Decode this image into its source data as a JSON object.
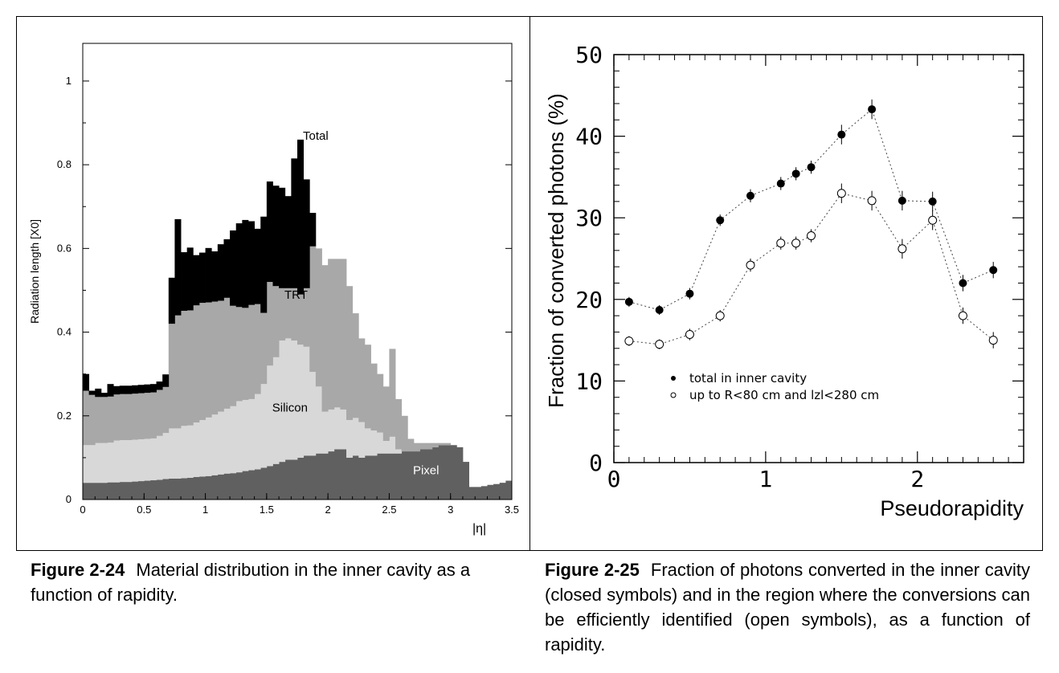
{
  "figures": [
    {
      "caption_label": "Figure 2-24",
      "caption_text": "Material distribution in the inner cavity as a function of rapidity."
    },
    {
      "caption_label": "Figure 2-25",
      "caption_text": "Fraction of photons converted in the inner cavity (closed symbols) and in the region where the conversions can be efficiently identified (open symbols), as a function of rapidity."
    }
  ],
  "chart_data": [
    {
      "type": "area",
      "stacked": true,
      "title": "",
      "xlabel": "|η|",
      "ylabel": "Radiation length [X0]",
      "xlim": [
        0,
        3.5
      ],
      "ylim": [
        0,
        1.09
      ],
      "x_ticks": [
        "0",
        "0.5",
        "1",
        "1.5",
        "2",
        "2.5",
        "3",
        "3.5"
      ],
      "y_ticks": [
        "0",
        "0.2",
        "0.4",
        "0.6",
        "0.8",
        "1"
      ],
      "bin_edges": [
        0,
        0.05,
        0.1,
        0.15,
        0.2,
        0.25,
        0.3,
        0.35,
        0.4,
        0.45,
        0.5,
        0.55,
        0.6,
        0.65,
        0.7,
        0.75,
        0.8,
        0.85,
        0.9,
        0.95,
        1.0,
        1.05,
        1.1,
        1.15,
        1.2,
        1.25,
        1.3,
        1.35,
        1.4,
        1.45,
        1.5,
        1.55,
        1.6,
        1.65,
        1.7,
        1.75,
        1.8,
        1.85,
        1.9,
        1.95,
        2.0,
        2.05,
        2.1,
        2.15,
        2.2,
        2.25,
        2.3,
        2.35,
        2.4,
        2.45,
        2.5,
        2.55,
        2.6,
        2.65,
        2.7,
        2.75,
        2.8,
        2.85,
        2.9,
        2.95,
        3.0,
        3.05,
        3.1,
        3.15,
        3.2,
        3.25,
        3.3,
        3.35,
        3.4,
        3.45,
        3.5
      ],
      "series": [
        {
          "name": "Pixel",
          "color": "#606060",
          "values": [
            0.04,
            0.04,
            0.04,
            0.04,
            0.041,
            0.041,
            0.042,
            0.042,
            0.043,
            0.044,
            0.045,
            0.046,
            0.047,
            0.049,
            0.05,
            0.05,
            0.051,
            0.052,
            0.054,
            0.055,
            0.056,
            0.058,
            0.06,
            0.062,
            0.063,
            0.065,
            0.068,
            0.07,
            0.072,
            0.076,
            0.08,
            0.085,
            0.09,
            0.095,
            0.095,
            0.1,
            0.105,
            0.105,
            0.11,
            0.11,
            0.115,
            0.12,
            0.12,
            0.1,
            0.105,
            0.1,
            0.105,
            0.105,
            0.11,
            0.11,
            0.11,
            0.11,
            0.115,
            0.115,
            0.115,
            0.12,
            0.12,
            0.125,
            0.13,
            0.13,
            0.13,
            0.125,
            0.09,
            0.03,
            0.03,
            0.032,
            0.035,
            0.037,
            0.04,
            0.045
          ]
        },
        {
          "name": "Silicon",
          "color": "#d8d8d8",
          "values": [
            0.09,
            0.09,
            0.095,
            0.095,
            0.095,
            0.1,
            0.1,
            0.1,
            0.1,
            0.1,
            0.1,
            0.1,
            0.105,
            0.11,
            0.12,
            0.12,
            0.125,
            0.125,
            0.13,
            0.135,
            0.14,
            0.145,
            0.15,
            0.155,
            0.16,
            0.17,
            0.17,
            0.17,
            0.18,
            0.2,
            0.24,
            0.255,
            0.29,
            0.29,
            0.285,
            0.27,
            0.26,
            0.2,
            0.16,
            0.1,
            0.1,
            0.1,
            0.095,
            0.09,
            0.09,
            0.085,
            0.065,
            0.06,
            0.05,
            0.03,
            0.04,
            0.01,
            0.0,
            0.0,
            0.0,
            0.0,
            0.0,
            0.0,
            0.0,
            0.0,
            0.0,
            0.0,
            0.0,
            0.0,
            0.0,
            0.0,
            0.0,
            0.0,
            0.0,
            0.0
          ]
        },
        {
          "name": "TRT",
          "color": "#a8a8a8",
          "values": [
            0.13,
            0.12,
            0.11,
            0.11,
            0.11,
            0.11,
            0.11,
            0.11,
            0.11,
            0.11,
            0.11,
            0.11,
            0.11,
            0.11,
            0.25,
            0.27,
            0.275,
            0.275,
            0.28,
            0.28,
            0.275,
            0.27,
            0.265,
            0.265,
            0.24,
            0.225,
            0.22,
            0.225,
            0.215,
            0.17,
            0.2,
            0.17,
            0.125,
            0.12,
            0.125,
            0.12,
            0.14,
            0.3,
            0.33,
            0.35,
            0.36,
            0.355,
            0.36,
            0.32,
            0.25,
            0.2,
            0.2,
            0.16,
            0.14,
            0.13,
            0.21,
            0.12,
            0.085,
            0.03,
            0.02,
            0.015,
            0.015,
            0.01,
            0.005,
            0.005,
            0.0,
            0.0,
            0.0,
            0.0,
            0.0,
            0.0,
            0.0,
            0.0,
            0.0,
            0.0
          ]
        },
        {
          "name": "Total",
          "color": "#000000",
          "values": [
            0.04,
            0.01,
            0.02,
            0.01,
            0.03,
            0.02,
            0.02,
            0.02,
            0.02,
            0.02,
            0.02,
            0.02,
            0.02,
            0.03,
            0.11,
            0.23,
            0.14,
            0.15,
            0.12,
            0.12,
            0.13,
            0.12,
            0.135,
            0.14,
            0.18,
            0.2,
            0.21,
            0.2,
            0.18,
            0.23,
            0.24,
            0.24,
            0.24,
            0.22,
            0.31,
            0.37,
            0.26,
            0.08,
            0.0,
            0.0,
            0.0,
            0.0,
            0.0,
            0.0,
            0.0,
            0.0,
            0.0,
            0.0,
            0.0,
            0.0,
            0.0,
            0.0,
            0.0,
            0.0,
            0.0,
            0.0,
            0.0,
            0.0,
            0.0,
            0.0,
            0.0,
            0.0,
            0.0,
            0.0,
            0.0,
            0.0,
            0.0,
            0.0,
            0.0,
            0.0
          ]
        }
      ],
      "annotations": [
        {
          "text": "Total",
          "x": 1.9,
          "y": 0.86
        },
        {
          "text": "TRT",
          "x": 1.74,
          "y": 0.48
        },
        {
          "text": "Silicon",
          "x": 1.69,
          "y": 0.21
        },
        {
          "text": "Pixel",
          "x": 2.8,
          "y": 0.06
        }
      ]
    },
    {
      "type": "scatter",
      "title": "",
      "xlabel": "Pseudorapidity",
      "ylabel": "Fraction of converted photons (%)",
      "xlim": [
        0,
        2.7
      ],
      "ylim": [
        0,
        50
      ],
      "x_ticks": [
        "0",
        "1",
        "2"
      ],
      "y_ticks": [
        "0",
        "10",
        "20",
        "30",
        "40",
        "50"
      ],
      "x": [
        0.1,
        0.3,
        0.5,
        0.7,
        0.9,
        1.1,
        1.2,
        1.3,
        1.5,
        1.7,
        1.9,
        2.1,
        2.3,
        2.5
      ],
      "series": [
        {
          "name": "total in inner cavity",
          "marker": "filled-circle",
          "values": [
            19.7,
            18.7,
            20.7,
            29.7,
            32.7,
            34.2,
            35.4,
            36.2,
            40.2,
            43.3,
            32.1,
            32.0,
            22.0,
            23.6
          ],
          "errors": [
            0.6,
            0.6,
            0.7,
            0.7,
            0.8,
            0.8,
            0.8,
            0.8,
            1.2,
            1.2,
            1.2,
            1.2,
            1.0,
            1.0
          ]
        },
        {
          "name": "up to R<80 cm and |z|<280 cm",
          "legend_text": "up to R<80 cm and lzl<280 cm",
          "marker": "open-circle",
          "values": [
            14.9,
            14.5,
            15.7,
            18.0,
            24.2,
            26.9,
            26.9,
            27.8,
            33.0,
            32.1,
            26.2,
            29.7,
            18.0,
            15.0
          ],
          "errors": [
            0.6,
            0.6,
            0.7,
            0.7,
            0.8,
            0.8,
            0.8,
            0.8,
            1.2,
            1.2,
            1.2,
            1.2,
            1.0,
            1.0
          ]
        }
      ],
      "legend": {
        "position": "lower-left",
        "entries": [
          "total in inner cavity",
          "up to R<80 cm and lzl<280 cm"
        ]
      }
    }
  ]
}
